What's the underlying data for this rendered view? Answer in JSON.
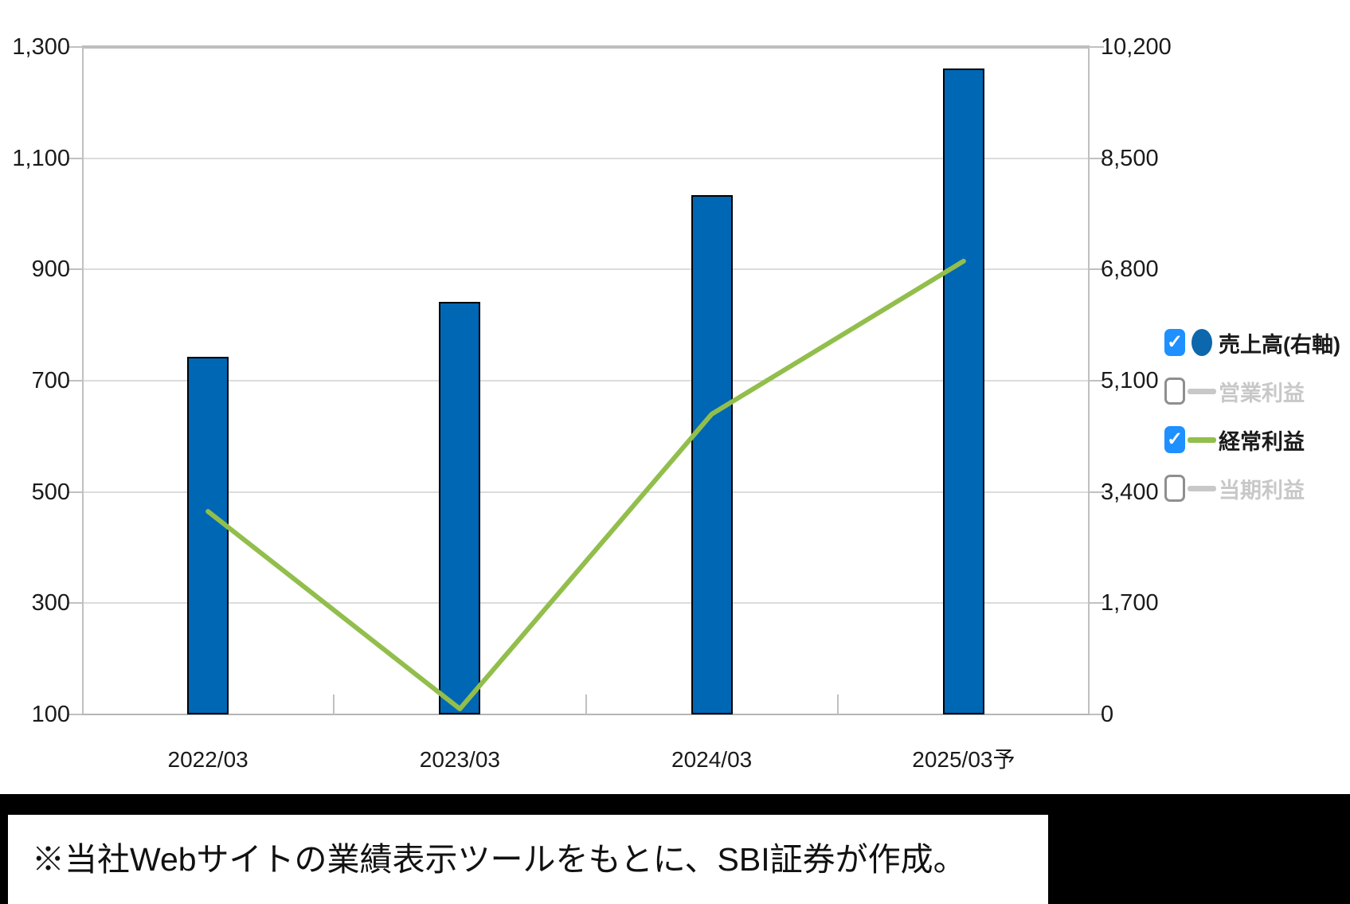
{
  "chart_data": {
    "type": "combo-bar-line",
    "categories": [
      "2022/03",
      "2023/03",
      "2024/03",
      "2025/03予"
    ],
    "series": [
      {
        "name": "売上高(右軸)",
        "type": "bar",
        "axis": "right",
        "checked": true,
        "color": "#0067b4",
        "legend_marker": "circle",
        "marker_color": "#0c67ad",
        "label_color": "#1a1a1a",
        "values": [
          5460,
          6300,
          7930,
          9870
        ]
      },
      {
        "name": "営業利益",
        "type": "line",
        "axis": "left",
        "checked": false,
        "color": "#c8c8c8",
        "legend_marker": "line",
        "marker_color": "#c8c8c8",
        "label_color": "#c8c8c8",
        "values": []
      },
      {
        "name": "経常利益",
        "type": "line",
        "axis": "left",
        "checked": true,
        "color": "#92be4c",
        "legend_marker": "line",
        "marker_color": "#92be4c",
        "label_color": "#1a1a1a",
        "values": [
          465,
          110,
          640,
          915
        ]
      },
      {
        "name": "当期利益",
        "type": "line",
        "axis": "left",
        "checked": false,
        "color": "#c8c8c8",
        "legend_marker": "line",
        "marker_color": "#c8c8c8",
        "label_color": "#c8c8c8",
        "values": []
      }
    ],
    "left_axis": {
      "min": 100,
      "max": 1300,
      "step": 200,
      "tick_labels": [
        "1,300",
        "1,100",
        "900",
        "700",
        "500",
        "300",
        "100"
      ]
    },
    "right_axis": {
      "min": 0,
      "max": 10200,
      "step": 1700,
      "tick_labels": [
        "10,200",
        "8,500",
        "6,800",
        "5,100",
        "3,400",
        "1,700",
        "0"
      ]
    },
    "grid": true,
    "legend_position": "right"
  },
  "colors": {
    "grid": "#dcdcdc",
    "grid_top": "#bdbdbd",
    "axis": "#c0c0c0",
    "checkbox_checked": "#1e90ff",
    "footer_background": "#000000"
  },
  "footer": {
    "note": "※当社Webサイトの業績表示ツールをもとに、SBI証券が作成。"
  }
}
